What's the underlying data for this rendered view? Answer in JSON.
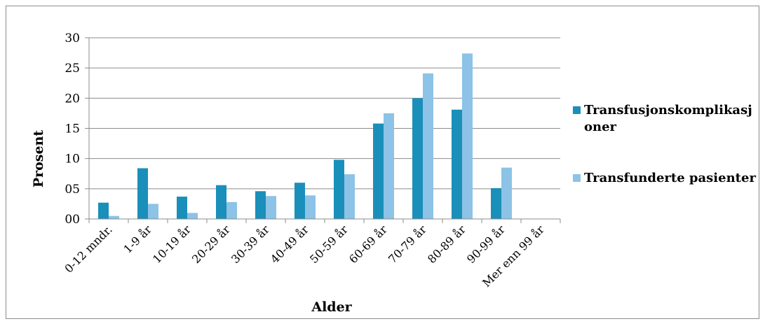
{
  "chart_data": {
    "type": "bar",
    "xlabel": "Alder",
    "ylabel": "Prosent",
    "ylim": [
      0,
      30
    ],
    "yticks": [
      0,
      5,
      10,
      15,
      20,
      25,
      30
    ],
    "ytick_labels": [
      "00",
      "05",
      "10",
      "15",
      "20",
      "25",
      "30"
    ],
    "grid": true,
    "legend_position": "right",
    "categories": [
      "0-12 mndr.",
      "1-9 år",
      "10-19 år",
      "20-29 år",
      "30-39 år",
      "40-49 år",
      "50-59 år",
      "60-69 år",
      "70-79 år",
      "80-89 år",
      "90-99 år",
      "Mer enn 99 år"
    ],
    "series": [
      {
        "name": "Transfusjonskomplikasjoner",
        "legend_lines": [
          "Transfusjonskomplikasj",
          "oner"
        ],
        "color": "#1a8fba",
        "values": [
          2.7,
          8.4,
          3.7,
          5.6,
          4.6,
          6.0,
          9.8,
          15.8,
          20.0,
          18.1,
          5.1,
          0
        ]
      },
      {
        "name": "Transfunderte pasienter",
        "legend_lines": [
          "Transfunderte pasienter"
        ],
        "color": "#8cc3e6",
        "values": [
          0.5,
          2.5,
          1.0,
          2.8,
          3.8,
          3.9,
          7.4,
          17.5,
          24.1,
          27.4,
          8.5,
          0
        ]
      }
    ]
  }
}
